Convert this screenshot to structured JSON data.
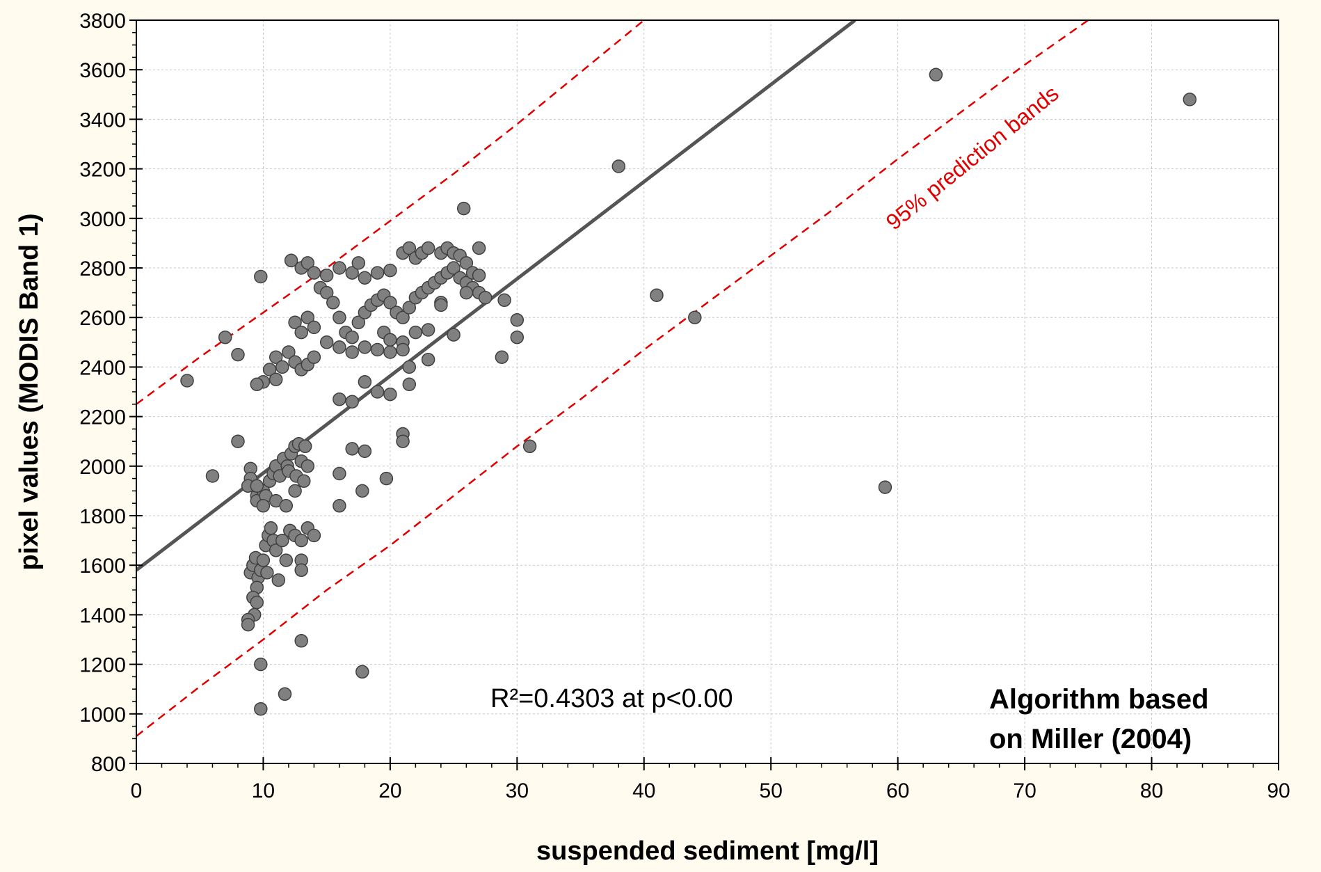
{
  "chart_data": {
    "type": "scatter",
    "xlabel": "suspended sediment [mg/l]",
    "ylabel": "pixel values (MODIS Band 1)",
    "xlim": [
      0,
      90
    ],
    "ylim": [
      800,
      3800
    ],
    "xticks": [
      0,
      10,
      20,
      30,
      40,
      50,
      60,
      70,
      80,
      90
    ],
    "yticks": [
      800,
      1000,
      1200,
      1400,
      1600,
      1800,
      2000,
      2200,
      2400,
      2600,
      2800,
      3000,
      3200,
      3400,
      3600,
      3800
    ],
    "grid": true,
    "annotations": {
      "r_squared": "R²=0.4303 at p<0.00",
      "algorithm_line1": "Algorithm based",
      "algorithm_line2": "on Miller (2004)",
      "band_label": "95% prediction bands"
    },
    "colors": {
      "points": "#808080",
      "point_edge": "#404040",
      "fit": "#555555",
      "bands": "#e00000",
      "background": "#fffbee"
    },
    "fit_line": {
      "intercept": 1580,
      "slope": 39.2
    },
    "prediction_bands": {
      "upper": [
        [
          0,
          2250
        ],
        [
          5,
          2440
        ],
        [
          10,
          2620
        ],
        [
          15,
          2800
        ],
        [
          20,
          2990
        ],
        [
          25,
          3180
        ],
        [
          30,
          3380
        ],
        [
          35,
          3590
        ],
        [
          40,
          3800
        ]
      ],
      "lower": [
        [
          0,
          910
        ],
        [
          5,
          1110
        ],
        [
          10,
          1300
        ],
        [
          15,
          1500
        ],
        [
          20,
          1680
        ],
        [
          25,
          1880
        ],
        [
          30,
          2080
        ],
        [
          35,
          2270
        ],
        [
          40,
          2470
        ],
        [
          45,
          2660
        ],
        [
          50,
          2850
        ],
        [
          55,
          3040
        ],
        [
          60,
          3240
        ],
        [
          65,
          3430
        ],
        [
          70,
          3620
        ],
        [
          75,
          3800
        ]
      ]
    },
    "points": [
      [
        4,
        2345
      ],
      [
        6,
        1960
      ],
      [
        7,
        2520
      ],
      [
        8,
        2450
      ],
      [
        8,
        2100
      ],
      [
        9.8,
        2765
      ],
      [
        9.8,
        1200
      ],
      [
        9.8,
        1020
      ],
      [
        11.7,
        1080
      ],
      [
        17.8,
        1170
      ],
      [
        13,
        1295
      ],
      [
        9,
        1990
      ],
      [
        9,
        1950
      ],
      [
        8.8,
        1920
      ],
      [
        9.5,
        1880
      ],
      [
        9.5,
        1860
      ],
      [
        10,
        1900
      ],
      [
        10.5,
        1940
      ],
      [
        10.8,
        1970
      ],
      [
        11,
        2000
      ],
      [
        11.3,
        1960
      ],
      [
        11.6,
        2030
      ],
      [
        11.9,
        2000
      ],
      [
        12.2,
        2050
      ],
      [
        12.5,
        2080
      ],
      [
        12.8,
        2090
      ],
      [
        13,
        2020
      ],
      [
        13.3,
        2080
      ],
      [
        13.5,
        2000
      ],
      [
        12,
        1980
      ],
      [
        12.6,
        1960
      ],
      [
        13.2,
        1940
      ],
      [
        9.5,
        1920
      ],
      [
        10.2,
        1880
      ],
      [
        11,
        1860
      ],
      [
        11.8,
        1840
      ],
      [
        10,
        1840
      ],
      [
        12.5,
        1900
      ],
      [
        9,
        1570
      ],
      [
        9.2,
        1600
      ],
      [
        9.4,
        1630
      ],
      [
        9.6,
        1550
      ],
      [
        9.8,
        1580
      ],
      [
        10,
        1620
      ],
      [
        10.2,
        1680
      ],
      [
        10.4,
        1720
      ],
      [
        10.6,
        1750
      ],
      [
        10.8,
        1700
      ],
      [
        11,
        1660
      ],
      [
        11.2,
        1540
      ],
      [
        9.5,
        1510
      ],
      [
        9.2,
        1470
      ],
      [
        9.5,
        1450
      ],
      [
        9.3,
        1400
      ],
      [
        8.8,
        1380
      ],
      [
        8.8,
        1360
      ],
      [
        11.5,
        1700
      ],
      [
        12.1,
        1740
      ],
      [
        12.5,
        1720
      ],
      [
        13,
        1700
      ],
      [
        13.5,
        1750
      ],
      [
        14,
        1720
      ],
      [
        11.8,
        1620
      ],
      [
        13,
        1620
      ],
      [
        13,
        1580
      ],
      [
        10.3,
        1570
      ],
      [
        10,
        2340
      ],
      [
        10.5,
        2390
      ],
      [
        11,
        2440
      ],
      [
        11.5,
        2400
      ],
      [
        12,
        2460
      ],
      [
        12.5,
        2420
      ],
      [
        13,
        2390
      ],
      [
        13.5,
        2410
      ],
      [
        14,
        2440
      ],
      [
        11,
        2350
      ],
      [
        9.5,
        2330
      ],
      [
        12.5,
        2580
      ],
      [
        13,
        2540
      ],
      [
        13.5,
        2600
      ],
      [
        14,
        2560
      ],
      [
        14.5,
        2720
      ],
      [
        15,
        2700
      ],
      [
        15.5,
        2660
      ],
      [
        16,
        2600
      ],
      [
        16.5,
        2540
      ],
      [
        17,
        2520
      ],
      [
        17.5,
        2580
      ],
      [
        18,
        2620
      ],
      [
        18.5,
        2650
      ],
      [
        19,
        2670
      ],
      [
        19.5,
        2690
      ],
      [
        20,
        2660
      ],
      [
        20.5,
        2620
      ],
      [
        21,
        2600
      ],
      [
        21.5,
        2640
      ],
      [
        22,
        2680
      ],
      [
        22.5,
        2700
      ],
      [
        23,
        2720
      ],
      [
        23.5,
        2740
      ],
      [
        24,
        2760
      ],
      [
        24.5,
        2780
      ],
      [
        25,
        2800
      ],
      [
        25.5,
        2760
      ],
      [
        26,
        2740
      ],
      [
        26.5,
        2720
      ],
      [
        27,
        2700
      ],
      [
        12.2,
        2830
      ],
      [
        13,
        2800
      ],
      [
        13.5,
        2820
      ],
      [
        14,
        2780
      ],
      [
        15,
        2770
      ],
      [
        16,
        2800
      ],
      [
        17,
        2780
      ],
      [
        17.5,
        2820
      ],
      [
        18,
        2760
      ],
      [
        19,
        2780
      ],
      [
        20,
        2790
      ],
      [
        21,
        2860
      ],
      [
        21.5,
        2880
      ],
      [
        22,
        2840
      ],
      [
        22.5,
        2860
      ],
      [
        23,
        2880
      ],
      [
        24,
        2860
      ],
      [
        24.5,
        2880
      ],
      [
        25,
        2860
      ],
      [
        25.5,
        2850
      ],
      [
        26,
        2820
      ],
      [
        27,
        2880
      ],
      [
        26.5,
        2780
      ],
      [
        27,
        2770
      ],
      [
        15,
        2500
      ],
      [
        16,
        2480
      ],
      [
        17,
        2460
      ],
      [
        18,
        2480
      ],
      [
        19,
        2470
      ],
      [
        20,
        2460
      ],
      [
        21,
        2500
      ],
      [
        19.5,
        2540
      ],
      [
        20,
        2510
      ],
      [
        21,
        2470
      ],
      [
        22,
        2540
      ],
      [
        23,
        2550
      ],
      [
        24,
        2660
      ],
      [
        25,
        2530
      ],
      [
        23,
        2430
      ],
      [
        21.5,
        2400
      ],
      [
        21.5,
        2330
      ],
      [
        20,
        2290
      ],
      [
        19,
        2300
      ],
      [
        18,
        2340
      ],
      [
        17,
        2260
      ],
      [
        16,
        2270
      ],
      [
        21,
        2130
      ],
      [
        21,
        2100
      ],
      [
        17,
        2070
      ],
      [
        18,
        2060
      ],
      [
        16,
        1970
      ],
      [
        19.7,
        1950
      ],
      [
        17.8,
        1900
      ],
      [
        16,
        1840
      ],
      [
        25.8,
        3040
      ],
      [
        29,
        2670
      ],
      [
        30,
        2590
      ],
      [
        30,
        2520
      ],
      [
        28.8,
        2440
      ],
      [
        31,
        2080
      ],
      [
        38,
        3210
      ],
      [
        41,
        2690
      ],
      [
        44,
        2600
      ],
      [
        59,
        1915
      ],
      [
        63,
        3580
      ],
      [
        83,
        3480
      ],
      [
        27.5,
        2680
      ],
      [
        26,
        2700
      ],
      [
        24,
        2650
      ]
    ]
  }
}
